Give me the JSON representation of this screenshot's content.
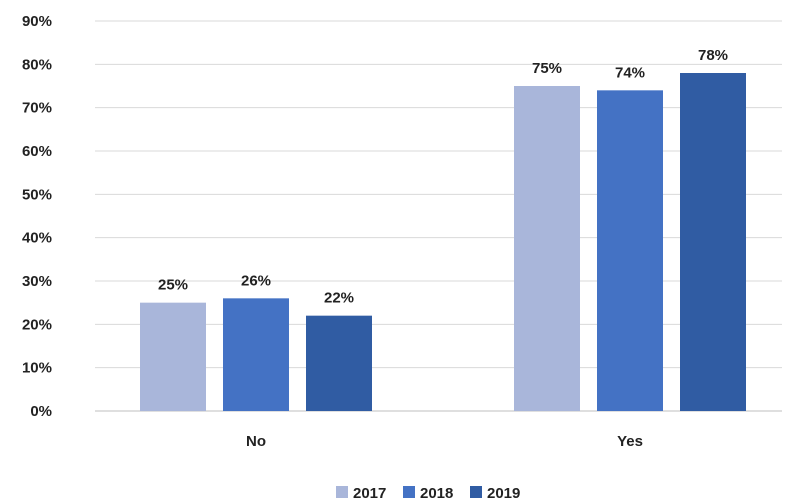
{
  "chart_data": {
    "type": "bar",
    "categories": [
      "No",
      "Yes"
    ],
    "series": [
      {
        "name": "2017",
        "values": [
          25,
          75
        ],
        "color": "#a9b6da",
        "labels": [
          "25%",
          "75%"
        ]
      },
      {
        "name": "2018",
        "values": [
          26,
          74
        ],
        "color": "#4472c4",
        "labels": [
          "26%",
          "74%"
        ]
      },
      {
        "name": "2019",
        "values": [
          22,
          78
        ],
        "color": "#305ca3",
        "labels": [
          "22%",
          "78%"
        ]
      }
    ],
    "ylim": [
      0,
      90
    ],
    "ytick_values": [
      0,
      10,
      20,
      30,
      40,
      50,
      60,
      70,
      80,
      90
    ],
    "ytick_labels": [
      "0%",
      "10%",
      "20%",
      "30%",
      "40%",
      "50%",
      "60%",
      "70%",
      "80%",
      "90%"
    ],
    "title": "",
    "xlabel": "",
    "ylabel": "",
    "grid": true,
    "legend_position": "bottom"
  }
}
